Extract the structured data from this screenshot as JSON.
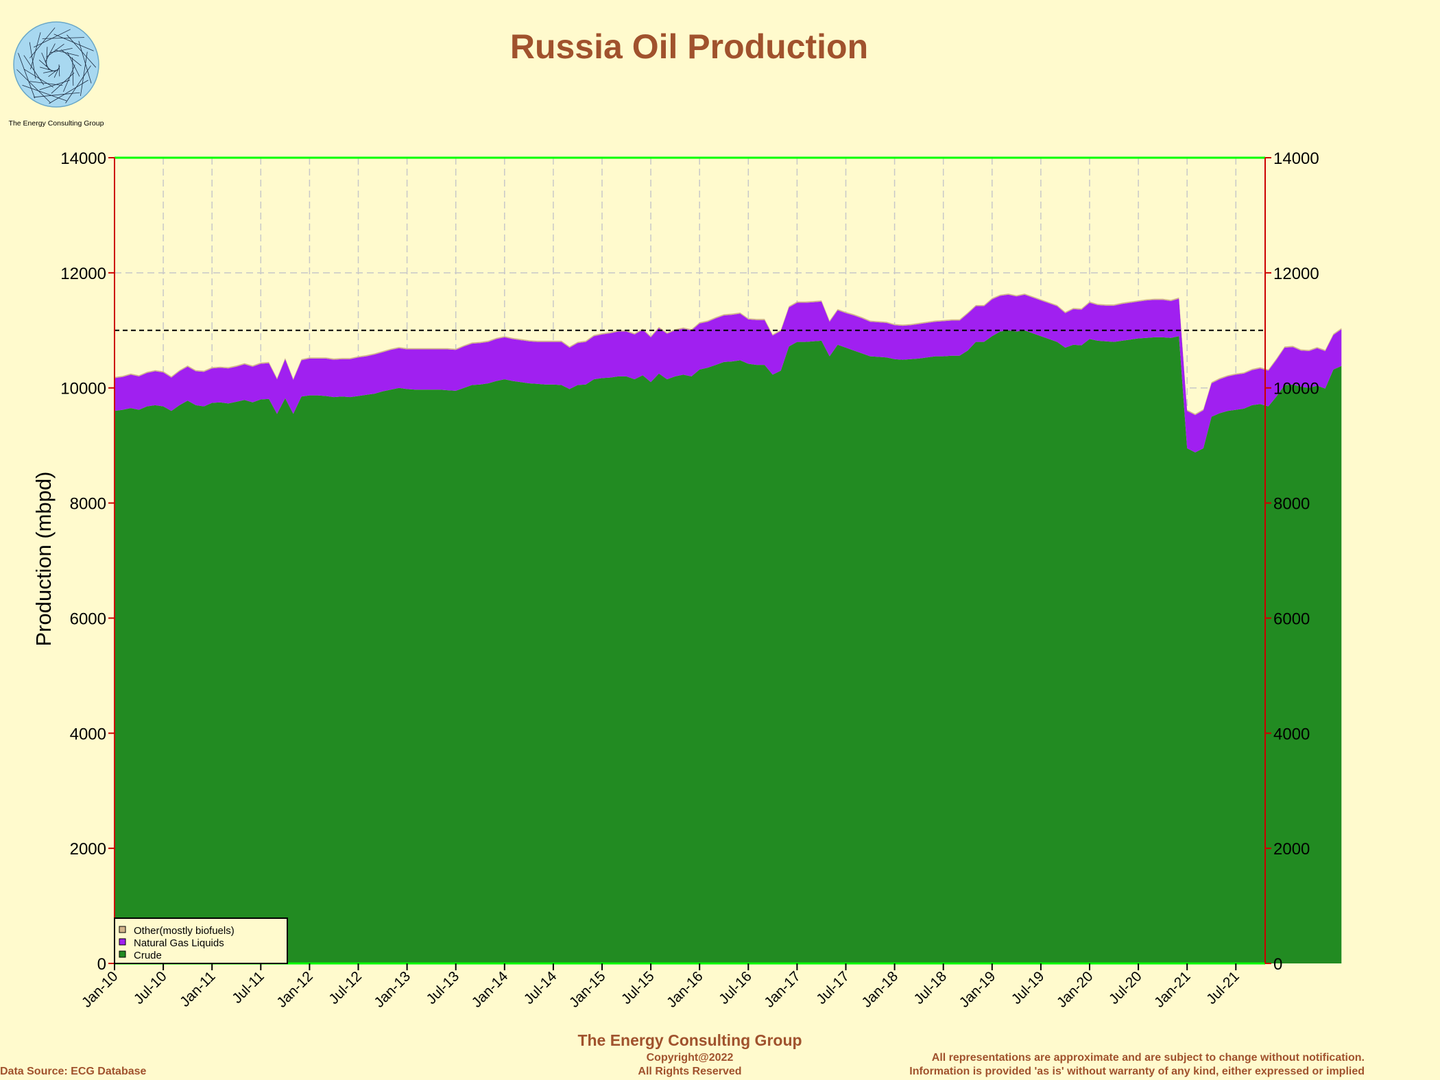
{
  "logo": {
    "caption": "The Energy Consulting Group"
  },
  "footer": {
    "company": "The Energy Consulting Group",
    "data_source": "Data Source: ECG Database",
    "copyright_line1": "Copyright@2022",
    "copyright_line2": "All Rights Reserved",
    "disclaimer_line1": "All representations are approximate and are subject to change without notification.",
    "disclaimer_line2": "Information is provided 'as is' without warranty of any kind, either expressed or implied"
  },
  "colors": {
    "background": "#fffacd",
    "title": "#a0522d",
    "crude": "#228b22",
    "ngl": "#a020f0",
    "other": "#d2b48c",
    "frame_top_bottom": "#00ff00",
    "frame_sides": "#cc0000",
    "grid": "#c8c8c8",
    "reference_line": "#000000"
  },
  "chart_data": {
    "type": "area",
    "stacked": true,
    "title": "Russia Oil Production",
    "ylabel": "Production (mbpd)",
    "xlabel": "",
    "ylim": [
      0,
      14000
    ],
    "y_ticks": [
      0,
      2000,
      4000,
      6000,
      8000,
      10000,
      12000,
      14000
    ],
    "secondary_y_axis": true,
    "grid": true,
    "legend_position": "bottom-left",
    "x_tick_labels": [
      "Jan-10",
      "Jul-10",
      "Jan-11",
      "Jul-11",
      "Jan-12",
      "Jul-12",
      "Jan-13",
      "Jul-13",
      "Jan-14",
      "Jul-14",
      "Jan-15",
      "Jul-15",
      "Jan-16",
      "Jul-16",
      "Jan-17",
      "Jul-17",
      "Jan-18",
      "Jul-18",
      "Jan-19",
      "Jul-19",
      "Jan-20",
      "Jul-20",
      "Jan-21",
      "Jul-21"
    ],
    "start_month": "Jan-10",
    "reference_line": {
      "y": 11000,
      "style": "dashed"
    },
    "series": [
      {
        "name": "Crude",
        "color": "#228b22",
        "values": [
          9600,
          9620,
          9650,
          9620,
          9680,
          9700,
          9680,
          9600,
          9700,
          9780,
          9700,
          9680,
          9740,
          9750,
          9730,
          9760,
          9790,
          9750,
          9800,
          9810,
          9550,
          9820,
          9550,
          9850,
          9870,
          9870,
          9860,
          9840,
          9850,
          9840,
          9860,
          9880,
          9900,
          9940,
          9970,
          10000,
          9980,
          9970,
          9970,
          9970,
          9970,
          9960,
          9950,
          10000,
          10050,
          10060,
          10080,
          10120,
          10150,
          10120,
          10100,
          10080,
          10070,
          10060,
          10060,
          10050,
          9980,
          10050,
          10060,
          10150,
          10170,
          10180,
          10200,
          10200,
          10150,
          10220,
          10100,
          10250,
          10150,
          10200,
          10230,
          10200,
          10320,
          10350,
          10400,
          10450,
          10460,
          10480,
          10420,
          10400,
          10400,
          10230,
          10300,
          10720,
          10800,
          10800,
          10810,
          10820,
          10550,
          10750,
          10700,
          10650,
          10600,
          10550,
          10540,
          10530,
          10500,
          10490,
          10500,
          10510,
          10530,
          10550,
          10550,
          10560,
          10560,
          10650,
          10800,
          10800,
          10900,
          10980,
          11000,
          10980,
          11000,
          10950,
          10900,
          10850,
          10800,
          10700,
          10750,
          10740,
          10850,
          10820,
          10810,
          10800,
          10820,
          10840,
          10860,
          10870,
          10880,
          10880,
          10870,
          10900,
          8950,
          8880,
          8950,
          9500,
          9560,
          9600,
          9620,
          9640,
          9700,
          9720,
          9680,
          9850,
          10050,
          10060,
          10020,
          10000,
          10040,
          9990,
          10320,
          10380
        ]
      },
      {
        "name": "Natural Gas Liquids",
        "color": "#a020f0",
        "values": [
          570,
          570,
          580,
          580,
          580,
          590,
          590,
          580,
          590,
          590,
          590,
          600,
          600,
          600,
          610,
          610,
          620,
          620,
          620,
          620,
          600,
          680,
          590,
          630,
          640,
          640,
          650,
          650,
          650,
          660,
          670,
          670,
          680,
          680,
          690,
          690,
          690,
          700,
          700,
          700,
          700,
          710,
          710,
          720,
          720,
          720,
          720,
          730,
          730,
          730,
          730,
          730,
          730,
          740,
          740,
          750,
          720,
          730,
          740,
          750,
          760,
          770,
          780,
          780,
          780,
          790,
          780,
          790,
          790,
          800,
          800,
          800,
          800,
          800,
          810,
          810,
          810,
          810,
          770,
          780,
          780,
          680,
          690,
          680,
          680,
          680,
          680,
          680,
          600,
          600,
          600,
          610,
          610,
          600,
          600,
          600,
          590,
          590,
          590,
          600,
          600,
          600,
          610,
          610,
          610,
          640,
          620,
          620,
          640,
          620,
          620,
          610,
          620,
          620,
          620,
          620,
          620,
          600,
          620,
          620,
          630,
          620,
          620,
          630,
          640,
          640,
          640,
          650,
          650,
          650,
          640,
          650,
          650,
          650,
          660,
          580,
          590,
          600,
          610,
          610,
          610,
          620,
          620,
          640,
          650,
          650,
          630,
          640,
          650,
          650,
          600,
          640
        ]
      },
      {
        "name": "Other(mostly biofuels)",
        "color": "#d2b48c",
        "values": [
          20,
          20,
          20,
          20,
          20,
          20,
          20,
          20,
          20,
          20,
          20,
          20,
          20,
          20,
          20,
          20,
          20,
          20,
          20,
          20,
          20,
          20,
          20,
          20,
          20,
          20,
          20,
          20,
          20,
          20,
          20,
          20,
          20,
          20,
          20,
          20,
          20,
          20,
          20,
          20,
          20,
          20,
          20,
          20,
          20,
          20,
          20,
          20,
          20,
          20,
          20,
          20,
          20,
          20,
          20,
          20,
          20,
          20,
          20,
          20,
          20,
          20,
          20,
          20,
          20,
          20,
          20,
          20,
          20,
          20,
          20,
          20,
          20,
          20,
          20,
          20,
          20,
          20,
          20,
          20,
          20,
          20,
          20,
          20,
          20,
          20,
          20,
          20,
          20,
          20,
          20,
          20,
          20,
          20,
          20,
          20,
          20,
          20,
          20,
          20,
          20,
          20,
          20,
          20,
          20,
          20,
          20,
          20,
          20,
          20,
          20,
          20,
          20,
          20,
          20,
          20,
          20,
          20,
          20,
          20,
          20,
          20,
          20,
          20,
          20,
          20,
          20,
          20,
          20,
          20,
          20,
          20,
          20,
          20,
          20,
          20,
          20,
          20,
          20,
          20,
          20,
          20,
          20,
          20,
          20,
          20,
          20,
          20,
          20,
          20,
          20,
          20
        ]
      }
    ]
  }
}
